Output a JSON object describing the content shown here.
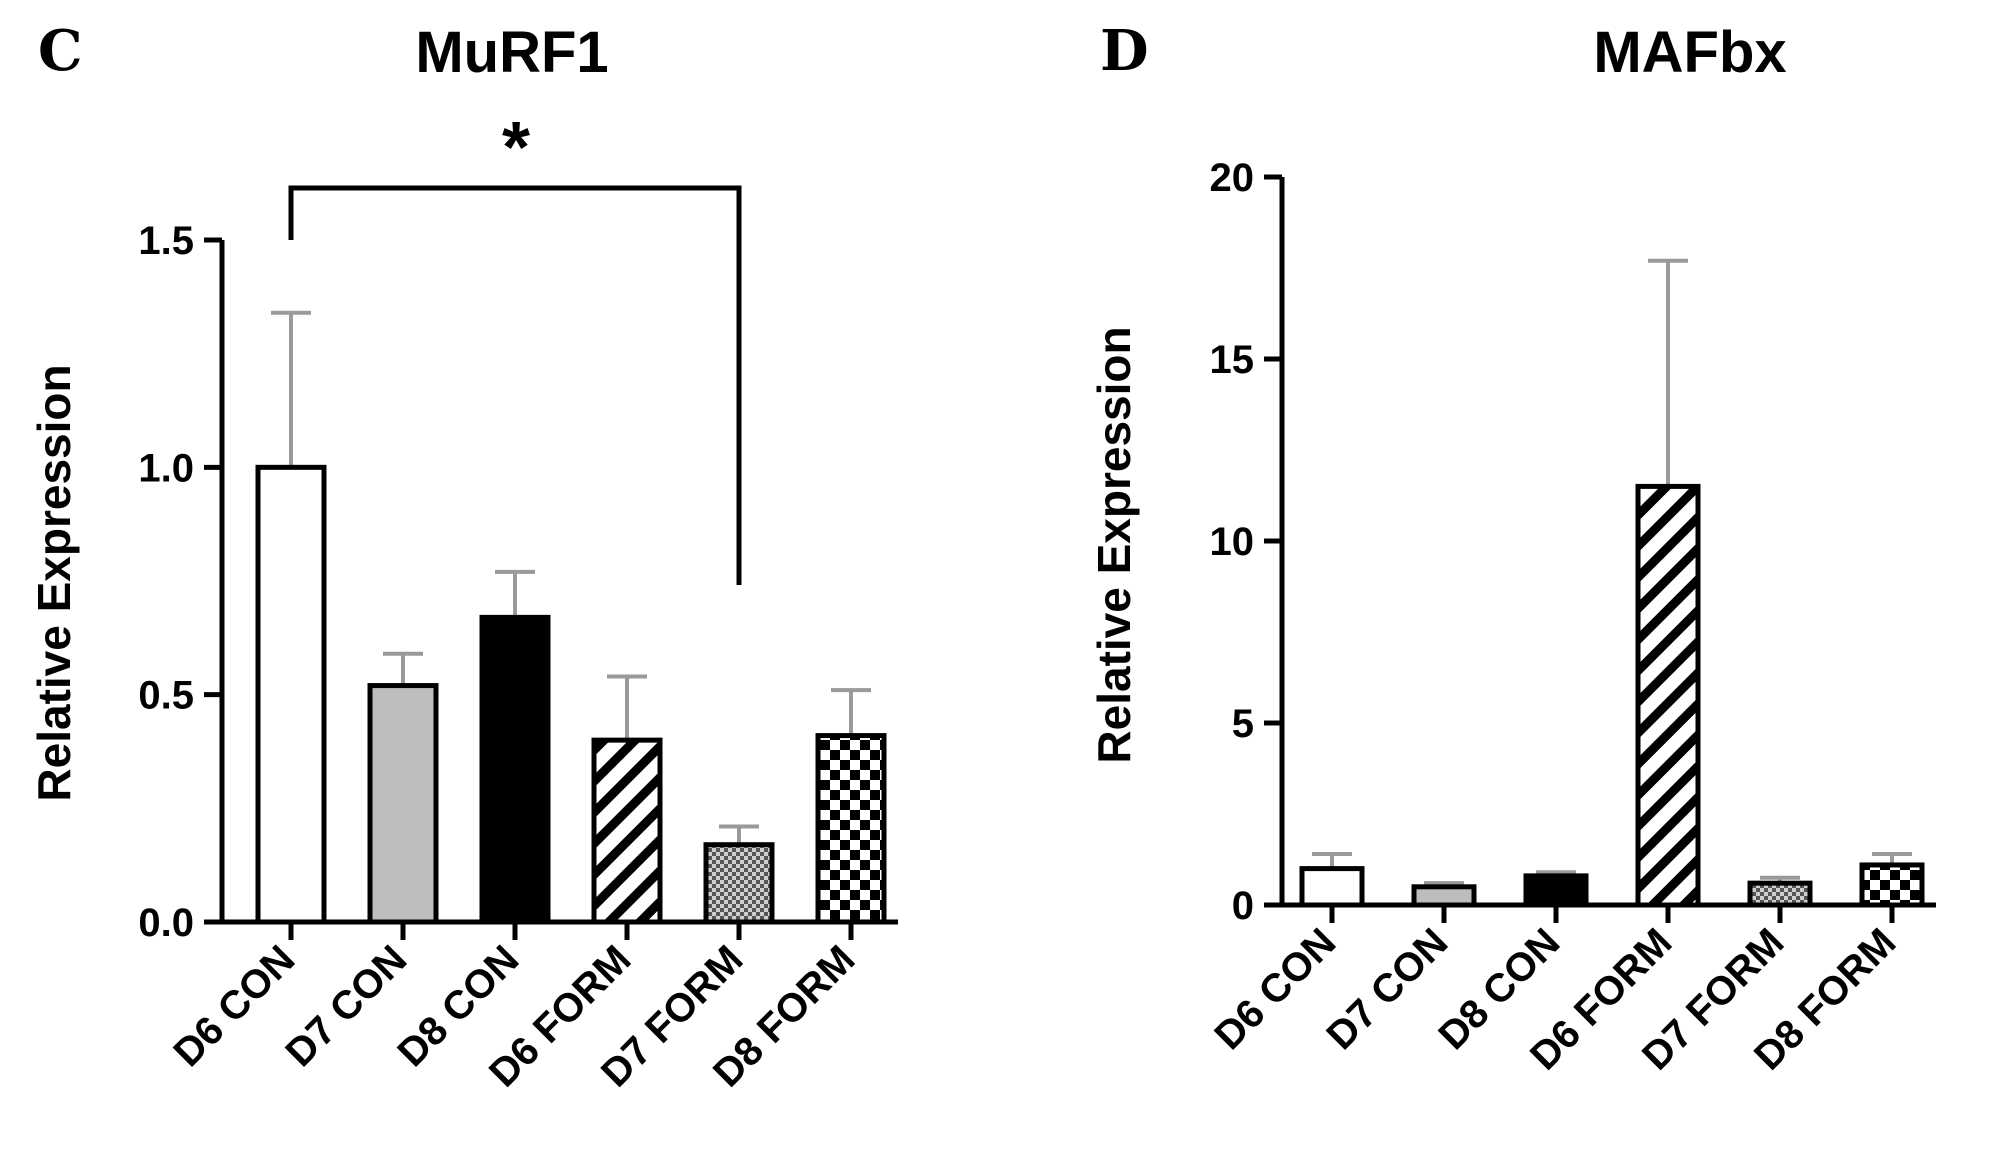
{
  "chart_data": [
    {
      "type": "bar",
      "panel": "C",
      "title": "MuRF1",
      "xlabel": "",
      "ylabel": "Relative Expression",
      "ylim": [
        0,
        1.5
      ],
      "yticks": [
        "0.0",
        "0.5",
        "1.0",
        "1.5"
      ],
      "categories": [
        "D6 CON",
        "D7 CON",
        "D8 CON",
        "D6 FORM",
        "D7 FORM",
        "D8 FORM"
      ],
      "values": [
        1.0,
        0.52,
        0.67,
        0.4,
        0.17,
        0.41
      ],
      "errors": [
        0.34,
        0.07,
        0.1,
        0.14,
        0.04,
        0.1
      ],
      "fills": [
        "white",
        "gray",
        "black",
        "diagonal-hatch",
        "fine-checker",
        "checkerboard"
      ],
      "significance": {
        "from": "D6 CON",
        "to": "D7 FORM",
        "label": "*"
      },
      "grid": false
    },
    {
      "type": "bar",
      "panel": "D",
      "title": "MAFbx",
      "xlabel": "",
      "ylabel": "Relative Expression",
      "ylim": [
        0,
        20
      ],
      "yticks": [
        "0",
        "5",
        "10",
        "15",
        "20"
      ],
      "categories": [
        "D6 CON",
        "D7 CON",
        "D8 CON",
        "D6 FORM",
        "D7 FORM",
        "D8 FORM"
      ],
      "values": [
        1.0,
        0.5,
        0.8,
        11.5,
        0.6,
        1.1
      ],
      "errors": [
        0.4,
        0.1,
        0.1,
        6.2,
        0.15,
        0.3
      ],
      "fills": [
        "white",
        "gray",
        "black",
        "diagonal-hatch",
        "fine-checker",
        "checkerboard"
      ],
      "grid": false
    }
  ],
  "colors": {
    "axis": "#000000",
    "bar_gray": "#bdbdbd",
    "bar_black": "#000000",
    "error_bar": "#9a9a9a"
  }
}
